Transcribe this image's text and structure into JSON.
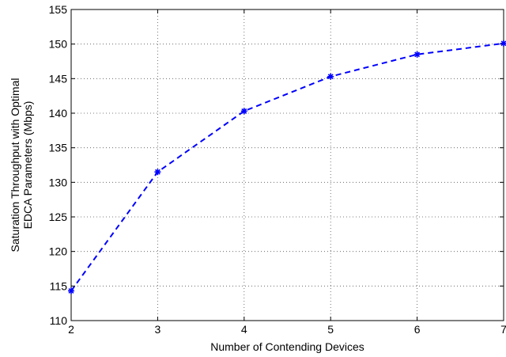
{
  "chart_data": {
    "type": "line",
    "xlabel": "Number of Contending Devices",
    "ylabel": [
      "Saturation Throughput with Optimal",
      "EDCA Parameters (Mbps)"
    ],
    "xlim": [
      2,
      7
    ],
    "ylim": [
      110,
      155
    ],
    "xticks": [
      2,
      3,
      4,
      5,
      6,
      7
    ],
    "yticks": [
      110,
      115,
      120,
      125,
      130,
      135,
      140,
      145,
      150,
      155
    ],
    "grid": true,
    "series": [
      {
        "color": "#0000ff",
        "line_style": "dashed",
        "marker": "asterisk",
        "x": [
          2,
          3,
          4,
          5,
          6,
          7
        ],
        "y": [
          114.3,
          131.5,
          140.3,
          145.3,
          148.5,
          150.1
        ]
      }
    ]
  }
}
